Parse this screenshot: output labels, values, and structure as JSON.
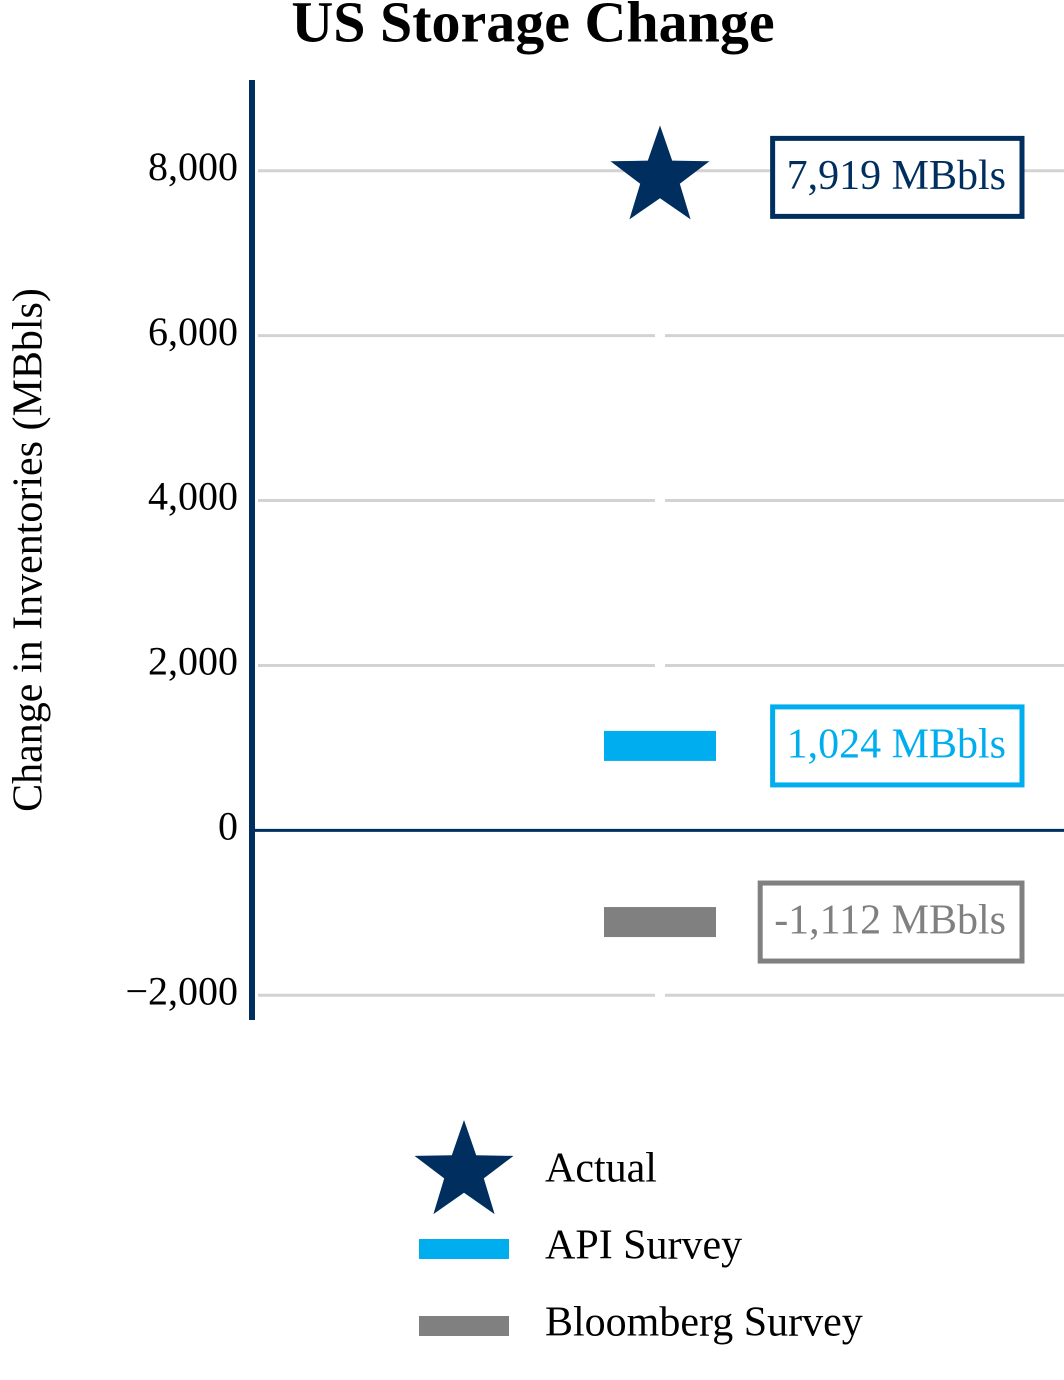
{
  "chart_data": {
    "type": "marker",
    "title": "US Storage Change",
    "y_label": "Change in Inventories (MBbls)",
    "ylim": [
      -2300,
      9100
    ],
    "yticks": [
      {
        "value": -2000,
        "label": "−2,000"
      },
      0,
      {
        "value": 2000,
        "label": "2,000"
      },
      {
        "value": 4000,
        "label": "4,000"
      },
      {
        "value": 6000,
        "label": "6,000"
      },
      {
        "value": 8000,
        "label": "8,000"
      }
    ],
    "grid": true,
    "legend": "bottom",
    "series": [
      {
        "name": "Actual",
        "color": "#002f5f",
        "marker": "star",
        "values": [
          7919
        ],
        "value_labels": [
          "7,919 MBbls"
        ]
      },
      {
        "name": "API Survey",
        "color": "#00aeef",
        "marker": "bar",
        "values": [
          1024
        ],
        "value_labels": [
          "1,024 MBbls"
        ]
      },
      {
        "name": "Bloomberg Survey",
        "color": "#808080",
        "marker": "bar",
        "values": [
          -1112
        ],
        "value_labels": [
          "-1,112 MBbls"
        ]
      }
    ]
  }
}
